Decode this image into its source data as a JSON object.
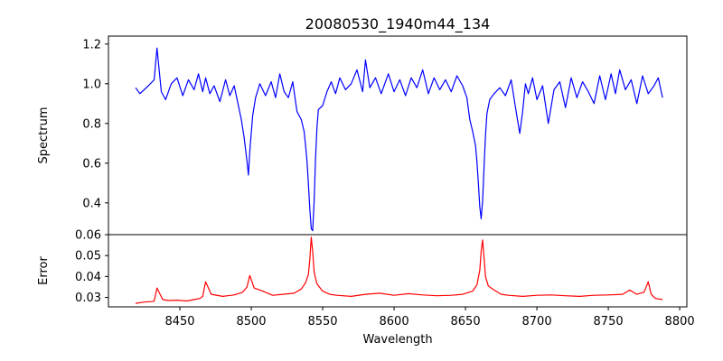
{
  "chart_data": {
    "title": "20080530_1940m44_134",
    "xlabel": "Wavelength",
    "xlim": [
      8400,
      8805
    ],
    "xticks": [
      8450,
      8500,
      8550,
      8600,
      8650,
      8700,
      8750,
      8800
    ],
    "x_start": 8419,
    "x_end": 8788,
    "panels": [
      {
        "name": "spectrum",
        "type": "line",
        "ylabel": "Spectrum",
        "ylim": [
          0.24,
          1.24
        ],
        "yticks": [
          0.4,
          0.6,
          0.8,
          1.0,
          1.2
        ],
        "ytick_labels": [
          "0.4",
          "0.6",
          "0.8",
          "1.0",
          "1.2"
        ],
        "color": "#0000ff",
        "x": [
          8419,
          8422,
          8428,
          8432,
          8434,
          8437,
          8440,
          8444,
          8448,
          8452,
          8456,
          8460,
          8463,
          8466,
          8468,
          8471,
          8474,
          8478,
          8482,
          8485,
          8488,
          8491,
          8493,
          8495,
          8497,
          8498,
          8499,
          8501,
          8503,
          8506,
          8510,
          8514,
          8517,
          8520,
          8523,
          8526,
          8529,
          8532,
          8535,
          8537,
          8538,
          8539,
          8540,
          8541,
          8542,
          8543,
          8544,
          8545,
          8546,
          8547,
          8550,
          8553,
          8556,
          8559,
          8562,
          8566,
          8570,
          8574,
          8578,
          8580,
          8583,
          8587,
          8591,
          8596,
          8600,
          8604,
          8608,
          8612,
          8616,
          8620,
          8624,
          8628,
          8632,
          8636,
          8640,
          8644,
          8648,
          8651,
          8653,
          8655,
          8657,
          8658,
          8659,
          8660,
          8661,
          8662,
          8663,
          8664,
          8665,
          8667,
          8670,
          8674,
          8678,
          8682,
          8685,
          8688,
          8690,
          8692,
          8694,
          8697,
          8700,
          8704,
          8708,
          8712,
          8716,
          8720,
          8724,
          8728,
          8732,
          8736,
          8740,
          8744,
          8748,
          8752,
          8755,
          8758,
          8762,
          8766,
          8770,
          8774,
          8778,
          8782,
          8785,
          8788
        ],
        "values": [
          0.98,
          0.95,
          0.99,
          1.02,
          1.18,
          0.96,
          0.92,
          1.0,
          1.03,
          0.94,
          1.02,
          0.97,
          1.05,
          0.96,
          1.03,
          0.95,
          0.99,
          0.91,
          1.02,
          0.94,
          0.99,
          0.89,
          0.82,
          0.73,
          0.61,
          0.54,
          0.66,
          0.84,
          0.93,
          1.0,
          0.94,
          1.01,
          0.93,
          1.05,
          0.96,
          0.93,
          1.01,
          0.86,
          0.82,
          0.76,
          0.69,
          0.61,
          0.5,
          0.37,
          0.27,
          0.26,
          0.41,
          0.62,
          0.78,
          0.87,
          0.89,
          0.96,
          1.01,
          0.95,
          1.03,
          0.97,
          1.0,
          1.07,
          0.96,
          1.12,
          0.98,
          1.03,
          0.95,
          1.05,
          0.96,
          1.02,
          0.94,
          1.03,
          0.98,
          1.07,
          0.95,
          1.03,
          0.97,
          1.02,
          0.96,
          1.04,
          0.99,
          0.93,
          0.82,
          0.76,
          0.69,
          0.61,
          0.5,
          0.38,
          0.32,
          0.41,
          0.58,
          0.74,
          0.85,
          0.92,
          0.95,
          0.98,
          0.94,
          1.02,
          0.88,
          0.75,
          0.86,
          1.0,
          0.95,
          1.03,
          0.92,
          0.99,
          0.8,
          0.97,
          1.01,
          0.88,
          1.03,
          0.93,
          1.01,
          0.96,
          0.9,
          1.04,
          0.92,
          1.05,
          0.95,
          1.07,
          0.97,
          1.02,
          0.9,
          1.04,
          0.95,
          0.99,
          1.03,
          0.93
        ]
      },
      {
        "name": "error",
        "type": "line",
        "ylabel": "Error",
        "ylim": [
          0.0255,
          0.06
        ],
        "yticks": [
          0.03,
          0.04,
          0.05,
          0.06
        ],
        "ytick_labels": [
          "0.03",
          "0.04",
          "0.05",
          "0.06"
        ],
        "color": "#ff0000",
        "x": [
          8419,
          8425,
          8430,
          8432,
          8434,
          8438,
          8442,
          8448,
          8455,
          8460,
          8464,
          8466,
          8468,
          8472,
          8480,
          8488,
          8494,
          8497,
          8499,
          8502,
          8508,
          8515,
          8522,
          8530,
          8535,
          8538,
          8540,
          8541,
          8542,
          8543,
          8544,
          8546,
          8550,
          8555,
          8560,
          8570,
          8580,
          8590,
          8600,
          8610,
          8620,
          8630,
          8640,
          8648,
          8655,
          8658,
          8660,
          8661,
          8662,
          8663,
          8664,
          8666,
          8670,
          8675,
          8680,
          8690,
          8700,
          8710,
          8720,
          8730,
          8740,
          8750,
          8760,
          8765,
          8770,
          8775,
          8778,
          8780,
          8783,
          8788
        ],
        "values": [
          0.0272,
          0.0278,
          0.028,
          0.0282,
          0.0345,
          0.029,
          0.0285,
          0.0287,
          0.0283,
          0.029,
          0.0295,
          0.0305,
          0.0375,
          0.0315,
          0.0305,
          0.0312,
          0.0325,
          0.035,
          0.0405,
          0.0345,
          0.033,
          0.031,
          0.0315,
          0.032,
          0.034,
          0.037,
          0.041,
          0.048,
          0.0588,
          0.052,
          0.042,
          0.0365,
          0.033,
          0.0315,
          0.031,
          0.0305,
          0.0315,
          0.032,
          0.031,
          0.0318,
          0.0312,
          0.0308,
          0.031,
          0.0315,
          0.033,
          0.036,
          0.043,
          0.052,
          0.0575,
          0.049,
          0.04,
          0.0355,
          0.0335,
          0.0315,
          0.031,
          0.0305,
          0.031,
          0.0312,
          0.0308,
          0.0305,
          0.031,
          0.0312,
          0.0315,
          0.0335,
          0.0315,
          0.0325,
          0.0375,
          0.0315,
          0.0295,
          0.029
        ]
      }
    ]
  }
}
